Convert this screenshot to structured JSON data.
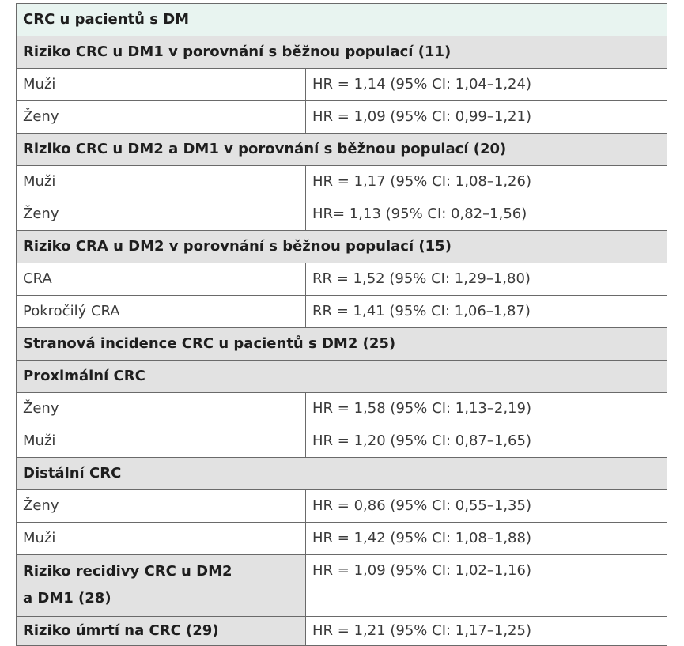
{
  "title": "CRC u pacientů s DM",
  "sections": [
    {
      "heading": "Riziko CRC u DM1 v porovnání s běžnou populací (11)",
      "rows": [
        {
          "label": "Muži",
          "value": "HR = 1,14 (95% CI: 1,04–1,24)"
        },
        {
          "label": "Ženy",
          "value": "HR = 1,09 (95% CI: 0,99–1,21)"
        }
      ]
    },
    {
      "heading": "Riziko CRC u DM2 a DM1 v porovnání s běžnou populací (20)",
      "rows": [
        {
          "label": "Muži",
          "value": "HR = 1,17 (95% CI: 1,08–1,26)"
        },
        {
          "label": "Ženy",
          "value": "HR= 1,13 (95% CI: 0,82–1,56)"
        }
      ]
    },
    {
      "heading": "Riziko CRA u DM2 v porovnání s běžnou populací (15)",
      "rows": [
        {
          "label": "CRA",
          "value": "RR = 1,52 (95% CI: 1,29–1,80)"
        },
        {
          "label": "Pokročilý CRA",
          "value": "RR = 1,41 (95% CI: 1,06–1,87)"
        }
      ]
    },
    {
      "heading": "Stranová incidence CRC u pacientů s DM2 (25)",
      "rows": []
    },
    {
      "heading": "Proximální CRC",
      "rows": [
        {
          "label": "Ženy",
          "value": "HR = 1,58 (95% CI: 1,13–2,19)"
        },
        {
          "label": "Muži",
          "value": "HR = 1,20 (95% CI: 0,87–1,65)"
        }
      ]
    },
    {
      "heading": "Distální CRC",
      "rows": [
        {
          "label": "Ženy",
          "value": "HR = 0,86 (95% CI: 0,55–1,35)"
        },
        {
          "label": "Muži",
          "value": "HR = 1,42 (95% CI: 1,08–1,88)"
        }
      ]
    }
  ],
  "recurrence": {
    "label_line1": "Riziko recidivy CRC u DM2",
    "label_line2": "a DM1 (28)",
    "value": "HR = 1,09 (95% CI: 1,02–1,16)"
  },
  "mortality": {
    "label": "Riziko úmrtí na CRC (29)",
    "value": "HR = 1,21 (95% CI: 1,17–1,25)"
  }
}
